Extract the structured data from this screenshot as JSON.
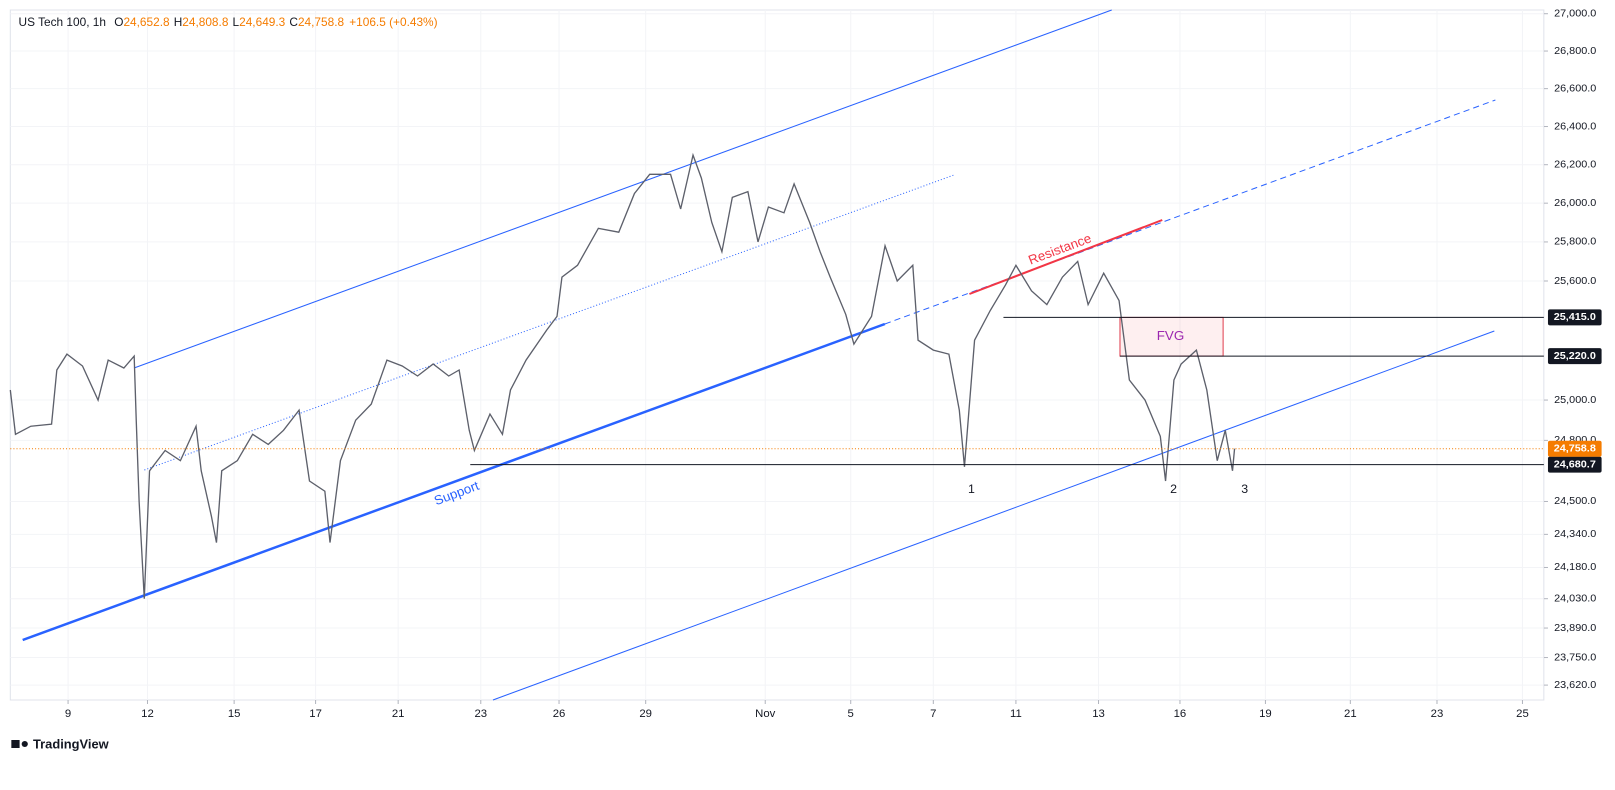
{
  "chart_data": {
    "type": "line",
    "title": "US Tech 100, 1h",
    "ohlc_labels": [
      "O",
      "H",
      "L",
      "C"
    ],
    "ohlc_values": [
      24652.8,
      24808.8,
      24649.3,
      24758.8
    ],
    "ohlc_value_labels": [
      "24,652.8",
      "24,808.8",
      "24,649.3",
      "24,758.8"
    ],
    "change": "+106.5 (+0.43%)",
    "log_scale": true,
    "color": "#5d606b",
    "x": [
      0,
      0.18,
      0.71,
      1.43,
      1.61,
      1.96,
      2.5,
      3.04,
      3.39,
      3.93,
      4.29,
      4.36,
      4.46,
      4.64,
      4.82,
      5.36,
      5.89,
      6.43,
      6.61,
      6.96,
      7.14,
      7.32,
      7.86,
      8.39,
      8.93,
      9.46,
      10,
      10.36,
      10.89,
      11.07,
      11.43,
      11.96,
      12.5,
      13.04,
      13.57,
      14.1,
      14.64,
      15.18,
      15.54,
      15.89,
      16.07,
      16.61,
      17.04,
      17.32,
      17.86,
      18.57,
      18.93,
      19.1,
      19.64,
      20.36,
      21.07,
      21.61,
      22.14,
      22.86,
      23.21,
      23.64,
      23.93,
      24.29,
      24.64,
      25,
      25.54,
      25.89,
      26.25,
      26.79,
      27.14,
      27.68,
      28.04,
      28.39,
      28.93,
      29.21,
      29.82,
      30.29,
      30.71,
      31.25,
      31.43,
      31.96,
      32.5,
      32.86,
      33.04,
      33.39,
      33.93,
      34.46,
      34.82,
      35.36,
      35.89,
      36.43,
      36.96,
      37.32,
      37.86,
      38.39,
      38.75,
      39.29,
      39.82,
      40,
      40.29,
      40.54,
      41.07,
      41.43,
      41.79,
      42.07,
      42.32,
      42.39
    ],
    "values": [
      25050,
      24830,
      24870,
      24880,
      25150,
      25230,
      25170,
      25000,
      25200,
      25160,
      25220,
      24900,
      24500,
      24030,
      24650,
      24750,
      24700,
      24870,
      24650,
      24430,
      24300,
      24650,
      24700,
      24830,
      24780,
      24850,
      24950,
      24600,
      24550,
      24300,
      24700,
      24900,
      24980,
      25200,
      25170,
      25120,
      25180,
      25120,
      25150,
      24850,
      24750,
      24930,
      24830,
      25050,
      25200,
      25350,
      25420,
      25620,
      25680,
      25870,
      25850,
      26050,
      26150,
      26150,
      25970,
      26250,
      26130,
      25900,
      25750,
      26030,
      26060,
      25800,
      25980,
      25950,
      26100,
      25900,
      25750,
      25620,
      25430,
      25280,
      25420,
      25780,
      25600,
      25680,
      25300,
      25250,
      25230,
      24950,
      24670,
      25300,
      25450,
      25580,
      25680,
      25550,
      25480,
      25620,
      25700,
      25480,
      25640,
      25500,
      25100,
      25000,
      24820,
      24600,
      25100,
      25180,
      25250,
      25050,
      24700,
      24850,
      24650,
      24758.8
    ],
    "xlim": [
      0,
      53.1
    ],
    "xticks": [
      {
        "value": 2,
        "label": "9"
      },
      {
        "value": 4.75,
        "label": "12"
      },
      {
        "value": 7.75,
        "label": "15"
      },
      {
        "value": 10.57,
        "label": "17"
      },
      {
        "value": 13.43,
        "label": "21"
      },
      {
        "value": 16.29,
        "label": "23"
      },
      {
        "value": 19,
        "label": "26"
      },
      {
        "value": 22,
        "label": "29"
      },
      {
        "value": 26.14,
        "label": "Nov"
      },
      {
        "value": 29.1,
        "label": "5"
      },
      {
        "value": 31.96,
        "label": "7"
      },
      {
        "value": 34.82,
        "label": "11"
      },
      {
        "value": 37.68,
        "label": "13"
      },
      {
        "value": 40.5,
        "label": "16"
      },
      {
        "value": 43.46,
        "label": "19"
      },
      {
        "value": 46.4,
        "label": "21"
      },
      {
        "value": 49.4,
        "label": "23"
      },
      {
        "value": 52.36,
        "label": "25"
      }
    ],
    "ylim": [
      23550,
      27020
    ],
    "yticks": [
      {
        "value": 27000,
        "label": "27,000.0"
      },
      {
        "value": 26800,
        "label": "26,800.0"
      },
      {
        "value": 26600,
        "label": "26,600.0"
      },
      {
        "value": 26400,
        "label": "26,400.0"
      },
      {
        "value": 26200,
        "label": "26,200.0"
      },
      {
        "value": 26000,
        "label": "26,000.0"
      },
      {
        "value": 25800,
        "label": "25,800.0"
      },
      {
        "value": 25600,
        "label": "25,600.0"
      },
      {
        "value": 25000,
        "label": "25,000.0"
      },
      {
        "value": 24800,
        "label": "24,800.0"
      },
      {
        "value": 24500,
        "label": "24,500.0"
      },
      {
        "value": 24340,
        "label": "24,340.0"
      },
      {
        "value": 24180,
        "label": "24,180.0"
      },
      {
        "value": 24030,
        "label": "24,030.0"
      },
      {
        "value": 23890,
        "label": "23,890.0"
      },
      {
        "value": 23750,
        "label": "23,750.0"
      },
      {
        "value": 23620,
        "label": "23,620.0"
      }
    ],
    "levels": [
      {
        "value": 25415,
        "label": "25,415.0"
      },
      {
        "value": 25220,
        "label": "25,220.0"
      },
      {
        "value": 24680.7,
        "label": "24,680.7"
      }
    ],
    "current_price": {
      "value": 24758.8,
      "label": "24,758.8"
    },
    "annotations": {
      "fvg": "FVG",
      "support": "Support",
      "resistance": "Resistance",
      "lows": [
        "1",
        "2",
        "3"
      ]
    },
    "brand": "TradingView"
  }
}
